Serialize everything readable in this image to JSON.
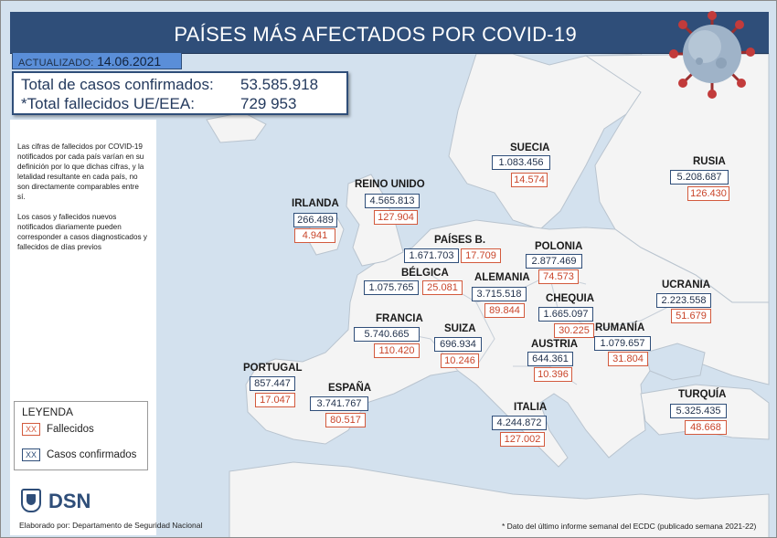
{
  "header": {
    "title": "PAÍSES MÁS AFECTADOS POR COVID-19"
  },
  "updated": {
    "label": "ACTUALIZADO:",
    "date": "14.06.2021"
  },
  "totals": {
    "confirmed_label": "Total de casos confirmados:",
    "confirmed_value": "53.585.918",
    "deaths_label": "*Total fallecidos UE/EEA:",
    "deaths_value": "729 953"
  },
  "notes": {
    "note1": "Las cifras de fallecidos por COVID-19 notificados por cada país varían en su definición por lo que dichas cifras, y la letalidad resultante en cada país, no son directamente comparables entre sí.",
    "note2": "Los casos y fallecidos nuevos notificados diariamente pueden corresponder a casos diagnosticados y fallecidos de días previos"
  },
  "legend": {
    "title": "LEYENDA",
    "swatch_text": "XX",
    "deaths_label": "Fallecidos",
    "cases_label": "Casos confirmados",
    "colors": {
      "deaths": "#d35a3d",
      "cases": "#2f4e79"
    }
  },
  "logo": {
    "text": "DSN"
  },
  "credit": "Elaborado por: Departamento de Seguridad Nacional",
  "footnote": "* Dato del último informe semanal del ECDC (publicado semana 2021-22)",
  "countries": {
    "suecia": {
      "name": "SUECIA",
      "cases": "1.083.456",
      "deaths": "14.574"
    },
    "rusia": {
      "name": "RUSIA",
      "cases": "5.208.687",
      "deaths": "126.430"
    },
    "reino_unido": {
      "name": "REINO UNIDO",
      "cases": "4.565.813",
      "deaths": "127.904"
    },
    "irlanda": {
      "name": "IRLANDA",
      "cases": "266.489",
      "deaths": "4.941"
    },
    "paises_b": {
      "name": "PAÍSES B.",
      "cases": "1.671.703",
      "deaths": "17.709"
    },
    "polonia": {
      "name": "POLONIA",
      "cases": "2.877.469",
      "deaths": "74.573"
    },
    "belgica": {
      "name": "BÉLGICA",
      "cases": "1.075.765",
      "deaths": "25.081"
    },
    "alemania": {
      "name": "ALEMANIA",
      "cases": "3.715.518",
      "deaths": "89.844"
    },
    "ucrania": {
      "name": "UCRANIA",
      "cases": "2.223.558",
      "deaths": "51.679"
    },
    "chequia": {
      "name": "CHEQUIA",
      "cases": "1.665.097",
      "deaths": "30.225"
    },
    "francia": {
      "name": "FRANCIA",
      "cases": "5.740.665",
      "deaths": "110.420"
    },
    "suiza": {
      "name": "SUIZA",
      "cases": "696.934",
      "deaths": "10.246"
    },
    "rumania": {
      "name": "RUMANÍA",
      "cases": "1.079.657",
      "deaths": "31.804"
    },
    "austria": {
      "name": "AUSTRIA",
      "cases": "644.361",
      "deaths": "10.396"
    },
    "portugal": {
      "name": "PORTUGAL",
      "cases": "857.447",
      "deaths": "17.047"
    },
    "espana": {
      "name": "ESPAÑA",
      "cases": "3.741.767",
      "deaths": "80.517"
    },
    "italia": {
      "name": "ITALIA",
      "cases": "4.244.872",
      "deaths": "127.002"
    },
    "turquia": {
      "name": "TURQUÍA",
      "cases": "5.325.435",
      "deaths": "48.668"
    }
  },
  "colors": {
    "sea": "#d3e1ee",
    "land": "#f4f4f4",
    "border": "#b9c4cf",
    "header": "#2f4e79",
    "updated_bg": "#5a8ed8"
  }
}
